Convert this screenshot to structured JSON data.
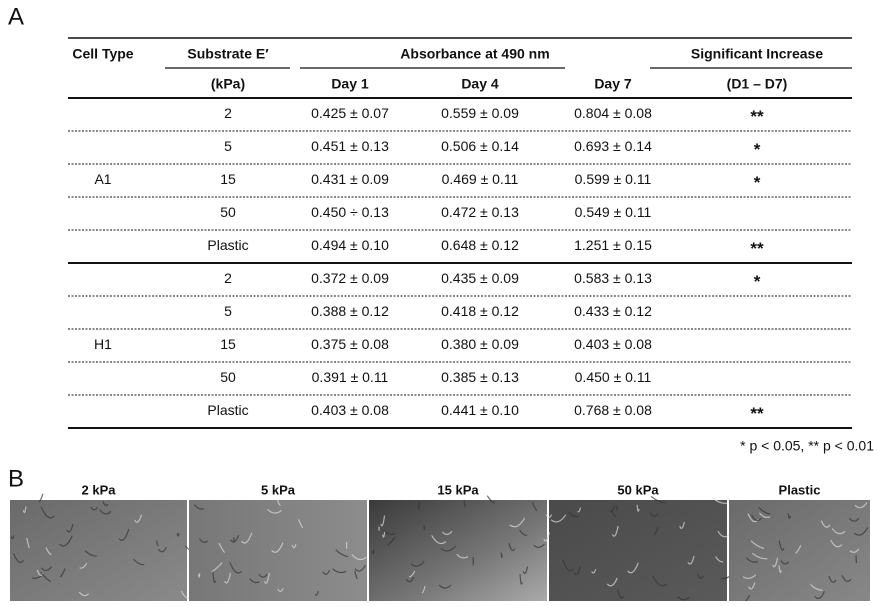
{
  "panel_a": {
    "label": "A",
    "header": {
      "cell_type": "Cell Type",
      "substrate": "Substrate E′",
      "substrate_unit": "(kPa)",
      "absorbance": "Absorbance at 490 nm",
      "day1": "Day 1",
      "day4": "Day 4",
      "day7": "Day 7",
      "significance": "Significant Increase",
      "significance_sub": "(D1 – D7)"
    },
    "groups": [
      {
        "cell_type": "A1",
        "rows": [
          {
            "substrate": "2",
            "day1": "0.425 ± 0.07",
            "day4": "0.559 ± 0.09",
            "day7": "0.804 ± 0.08",
            "sig": "**"
          },
          {
            "substrate": "5",
            "day1": "0.451 ± 0.13",
            "day4": "0.506 ± 0.14",
            "day7": "0.693 ± 0.14",
            "sig": "*"
          },
          {
            "substrate": "15",
            "day1": "0.431 ± 0.09",
            "day4": "0.469 ± 0.11",
            "day7": "0.599 ± 0.11",
            "sig": "*"
          },
          {
            "substrate": "50",
            "day1": "0.450 ÷ 0.13",
            "day4": "0.472 ± 0.13",
            "day7": "0.549 ± 0.11"
          },
          {
            "substrate": "Plastic",
            "day1": "0.494 ± 0.10",
            "day4": "0.648 ± 0.12",
            "day7": "1.251 ± 0.15",
            "sig": "**"
          }
        ]
      },
      {
        "cell_type": "H1",
        "rows": [
          {
            "substrate": "2",
            "day1": "0.372 ± 0.09",
            "day4": "0.435 ± 0.09",
            "day7": "0.583 ± 0.13",
            "sig": "*"
          },
          {
            "substrate": "5",
            "day1": "0.388 ± 0.12",
            "day4": "0.418 ± 0.12",
            "day7": "0.433 ± 0.12"
          },
          {
            "substrate": "15",
            "day1": "0.375 ± 0.08",
            "day4": "0.380 ± 0.09",
            "day7": "0.403 ± 0.08"
          },
          {
            "substrate": "50",
            "day1": "0.391 ± 0.11",
            "day4": "0.385 ± 0.13",
            "day7": "0.450 ± 0.11"
          },
          {
            "substrate": "Plastic",
            "day1": "0.403 ± 0.08",
            "day4": "0.441 ± 0.10",
            "day7": "0.768 ± 0.08",
            "sig": "**"
          }
        ]
      }
    ],
    "footnote": "* p < 0.05, ** p < 0.01"
  },
  "panel_b": {
    "label": "B",
    "images": [
      "2 kPa",
      "5 kPa",
      "15 kPa",
      "50 kPa",
      "Plastic"
    ]
  }
}
